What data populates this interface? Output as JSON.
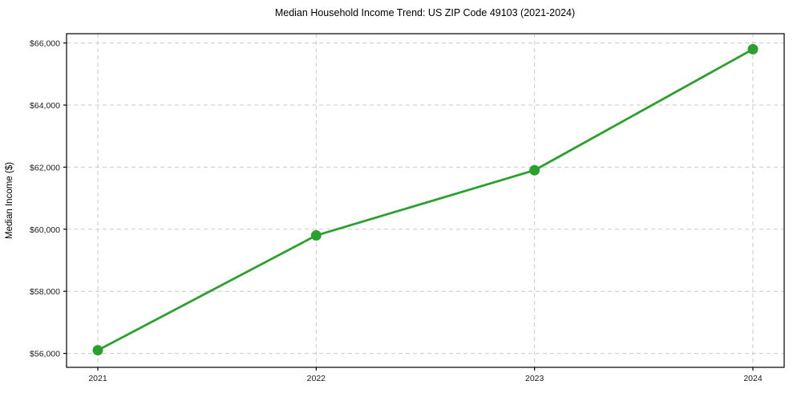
{
  "chart_data": {
    "type": "line",
    "title": "Median Household Income Trend: US ZIP Code 49103 (2021-2024)",
    "xlabel": "",
    "ylabel": "Median Income ($)",
    "categories": [
      "2021",
      "2022",
      "2023",
      "2024"
    ],
    "series": [
      {
        "values": [
          56100,
          59800,
          61900,
          65800
        ]
      }
    ],
    "y_ticks": [
      56000,
      58000,
      60000,
      62000,
      64000,
      66000
    ],
    "y_tick_labels": [
      "$56,000",
      "$58,000",
      "$60,000",
      "$62,000",
      "$64,000",
      "$66,000"
    ],
    "ylim": [
      55550,
      66300
    ],
    "grid": true,
    "legend": "none",
    "marker": "circle",
    "colors": {
      "line": "#2ca02c",
      "marker": "#2ca02c",
      "grid": "#c9c9c9",
      "frame": "#000000",
      "tick_label": "#1a1a1a",
      "title": "#000000",
      "background": "#ffffff"
    }
  }
}
